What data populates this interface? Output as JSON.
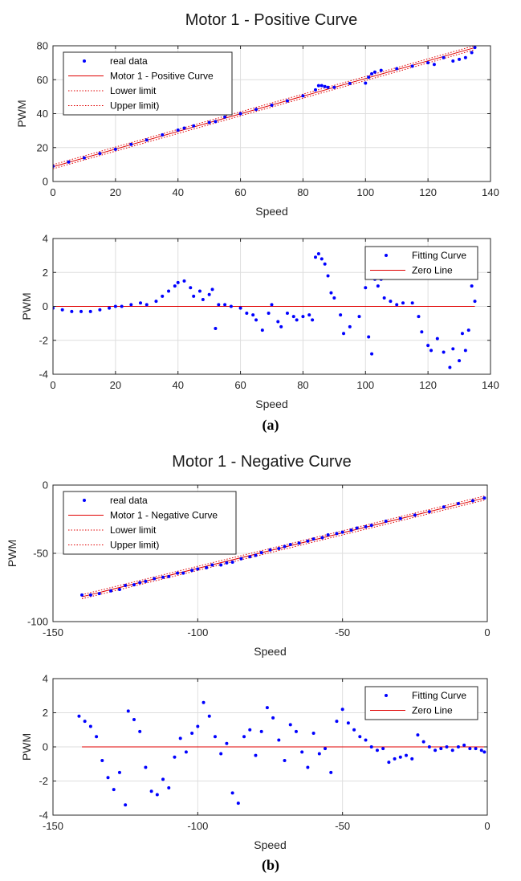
{
  "colors": {
    "data": "#0000ff",
    "curve": "#e00000",
    "grid": "#dedede",
    "axis": "#262626"
  },
  "figure": {
    "caption_a": "(a)",
    "caption_b": "(b)"
  },
  "chart_data": [
    {
      "id": "pos-fit",
      "type": "scatter",
      "title": "Motor 1 - Positive Curve",
      "xlabel": "Speed",
      "ylabel": "PWM",
      "xlim": [
        0,
        140
      ],
      "ylim": [
        0,
        80
      ],
      "xticks": [
        0,
        20,
        40,
        60,
        80,
        100,
        120,
        140
      ],
      "yticks": [
        0,
        20,
        40,
        60,
        80
      ],
      "grid": true,
      "legend_position": "top-left",
      "legend": [
        "real data",
        "Motor 1 - Positive Curve",
        "Lower limit",
        "Upper limit)"
      ],
      "fit": {
        "slope": 0.52,
        "intercept": 8.7
      },
      "lower_offset": -1.2,
      "upper_offset": 1.2,
      "series": [
        {
          "name": "real data",
          "style": "points",
          "x": [
            0,
            5,
            10,
            15,
            20,
            25,
            30,
            35,
            40,
            42,
            45,
            50,
            52,
            55,
            60,
            65,
            70,
            75,
            80,
            84,
            85,
            86,
            87,
            88,
            90,
            95,
            100,
            101,
            102,
            103,
            105,
            110,
            115,
            120,
            122,
            125,
            128,
            130,
            132,
            134,
            135
          ],
          "y": [
            9,
            11.5,
            13.9,
            16.5,
            19,
            21.9,
            24.5,
            27.5,
            30.3,
            31.5,
            32.8,
            34.8,
            35.3,
            38,
            40,
            42.5,
            45,
            47.5,
            50.5,
            54,
            56.5,
            56.5,
            56,
            55.5,
            55.5,
            57.8,
            58,
            61.5,
            63.5,
            64.5,
            65.5,
            66.5,
            68,
            70,
            69,
            73,
            71,
            72,
            73,
            76,
            79
          ]
        },
        {
          "name": "Motor 1 - Positive Curve",
          "style": "fit-line"
        },
        {
          "name": "Lower limit",
          "style": "dotted-offset"
        },
        {
          "name": "Upper limit)",
          "style": "dotted-offset"
        }
      ]
    },
    {
      "id": "pos-res",
      "type": "scatter",
      "title": "",
      "xlabel": "Speed",
      "ylabel": "PWM",
      "xlim": [
        0,
        140
      ],
      "ylim": [
        -4,
        4
      ],
      "xticks": [
        0,
        20,
        40,
        60,
        80,
        100,
        120,
        140
      ],
      "yticks": [
        -4,
        -2,
        0,
        2,
        4
      ],
      "grid": true,
      "legend_position": "top-right",
      "legend": [
        "Fitting Curve",
        "Zero Line"
      ],
      "series": [
        {
          "name": "Fitting Curve",
          "style": "points",
          "x": [
            0,
            3,
            6,
            9,
            12,
            15,
            18,
            20,
            22,
            25,
            28,
            30,
            33,
            35,
            37,
            39,
            40,
            42,
            44,
            45,
            47,
            48,
            50,
            51,
            52,
            53,
            55,
            57,
            60,
            62,
            64,
            65,
            67,
            69,
            70,
            72,
            73,
            75,
            77,
            78,
            80,
            82,
            83,
            84,
            85,
            86,
            87,
            88,
            89,
            90,
            92,
            93,
            95,
            98,
            100,
            101,
            102,
            103,
            104,
            105,
            106,
            108,
            110,
            112,
            115,
            117,
            118,
            120,
            121,
            123,
            125,
            127,
            128,
            130,
            131,
            132,
            133,
            134,
            135
          ],
          "y": [
            -0.1,
            -0.2,
            -0.3,
            -0.3,
            -0.3,
            -0.2,
            -0.1,
            0,
            0,
            0.1,
            0.2,
            0.1,
            0.3,
            0.6,
            0.9,
            1.2,
            1.4,
            1.5,
            1.1,
            0.6,
            0.9,
            0.4,
            0.7,
            1,
            -1.3,
            0.1,
            0.1,
            0,
            -0.1,
            -0.4,
            -0.5,
            -0.8,
            -1.4,
            -0.4,
            0.1,
            -0.9,
            -1.2,
            -0.4,
            -0.6,
            -0.8,
            -0.6,
            -0.5,
            -0.8,
            2.9,
            3.1,
            2.8,
            2.5,
            1.8,
            0.8,
            0.5,
            -0.5,
            -1.6,
            -1.2,
            -0.6,
            1.1,
            -1.8,
            -2.8,
            1.6,
            1.2,
            1.6,
            0.5,
            0.3,
            0.1,
            0.2,
            0.2,
            -0.6,
            -1.5,
            -2.3,
            -2.6,
            -1.9,
            -2.7,
            -3.6,
            -2.5,
            -3.2,
            -1.6,
            -2.6,
            -1.4,
            1.2,
            0.3
          ]
        },
        {
          "name": "Zero Line",
          "style": "zero-line"
        }
      ]
    },
    {
      "id": "neg-fit",
      "type": "scatter",
      "title": "Motor 1 - Negative Curve",
      "xlabel": "Speed",
      "ylabel": "PWM",
      "xlim": [
        -150,
        0
      ],
      "ylim": [
        -100,
        0
      ],
      "xticks": [
        -150,
        -100,
        -50,
        0
      ],
      "yticks": [
        -100,
        -50,
        0
      ],
      "grid": true,
      "legend_position": "top-left",
      "legend": [
        "real data",
        "Motor 1 - Negative Curve",
        "Lower limit",
        "Upper limit)"
      ],
      "fit": {
        "slope": 0.52,
        "intercept": -9
      },
      "lower_offset": -1.5,
      "upper_offset": 1.5,
      "series": [
        {
          "name": "real data",
          "style": "points",
          "x": [
            -140,
            -137,
            -134,
            -130,
            -127,
            -125,
            -122,
            -120,
            -118,
            -115,
            -112,
            -110,
            -107,
            -105,
            -102,
            -100,
            -97,
            -95,
            -92,
            -90,
            -88,
            -85,
            -82,
            -80,
            -78,
            -75,
            -72,
            -70,
            -68,
            -65,
            -62,
            -60,
            -57,
            -55,
            -52,
            -50,
            -47,
            -45,
            -42,
            -40,
            -35,
            -30,
            -25,
            -20,
            -15,
            -10,
            -5,
            -1
          ],
          "y": [
            -80.5,
            -80.5,
            -79.5,
            -77.5,
            -76.5,
            -73.5,
            -73,
            -71.5,
            -70.5,
            -68.5,
            -67.5,
            -67,
            -64.5,
            -64.5,
            -62.5,
            -61.5,
            -60.5,
            -58.5,
            -58.5,
            -57,
            -56.5,
            -54,
            -52.5,
            -51.5,
            -49.5,
            -47.5,
            -46.5,
            -45,
            -43.5,
            -42.5,
            -41,
            -39.5,
            -38.5,
            -36.5,
            -35.5,
            -34.5,
            -33,
            -31.5,
            -30.5,
            -29.5,
            -26.5,
            -24.5,
            -22,
            -19.5,
            -16,
            -13.5,
            -11.5,
            -9.5
          ]
        },
        {
          "name": "Motor 1 - Negative Curve",
          "style": "fit-line"
        },
        {
          "name": "Lower limit",
          "style": "dotted-offset"
        },
        {
          "name": "Upper limit)",
          "style": "dotted-offset"
        }
      ]
    },
    {
      "id": "neg-res",
      "type": "scatter",
      "title": "",
      "xlabel": "Speed",
      "ylabel": "PWM",
      "xlim": [
        -150,
        0
      ],
      "ylim": [
        -4,
        4
      ],
      "xticks": [
        -150,
        -100,
        -50,
        0
      ],
      "yticks": [
        -4,
        -2,
        0,
        2,
        4
      ],
      "grid": true,
      "legend_position": "top-right",
      "legend": [
        "Fitting Curve",
        "Zero Line"
      ],
      "series": [
        {
          "name": "Fitting Curve",
          "style": "points",
          "x": [
            -141,
            -139,
            -137,
            -135,
            -133,
            -131,
            -129,
            -127,
            -125,
            -124,
            -122,
            -120,
            -118,
            -116,
            -114,
            -112,
            -110,
            -108,
            -106,
            -104,
            -102,
            -100,
            -98,
            -96,
            -94,
            -92,
            -90,
            -88,
            -86,
            -84,
            -82,
            -80,
            -78,
            -76,
            -74,
            -72,
            -70,
            -68,
            -66,
            -64,
            -62,
            -60,
            -58,
            -56,
            -54,
            -52,
            -50,
            -48,
            -46,
            -44,
            -42,
            -40,
            -38,
            -36,
            -34,
            -32,
            -30,
            -28,
            -26,
            -24,
            -22,
            -20,
            -18,
            -16,
            -14,
            -12,
            -10,
            -8,
            -6,
            -4,
            -2,
            -1
          ],
          "y": [
            1.8,
            1.5,
            1.2,
            0.6,
            -0.8,
            -1.8,
            -2.5,
            -1.5,
            -3.4,
            2.1,
            1.6,
            0.9,
            -1.2,
            -2.6,
            -2.8,
            -1.9,
            -2.4,
            -0.6,
            0.5,
            -0.3,
            0.8,
            1.2,
            2.6,
            1.8,
            0.6,
            -0.4,
            0.2,
            -2.7,
            -3.3,
            0.6,
            1,
            -0.5,
            0.9,
            2.3,
            1.7,
            0.4,
            -0.8,
            1.3,
            0.9,
            -0.3,
            -1.2,
            0.8,
            -0.4,
            -0.1,
            -1.5,
            1.5,
            2.2,
            1.4,
            1,
            0.6,
            0.4,
            0,
            -0.2,
            -0.1,
            -0.9,
            -0.7,
            -0.6,
            -0.5,
            -0.7,
            0.7,
            0.3,
            0,
            -0.2,
            -0.1,
            0,
            -0.2,
            0,
            0.1,
            -0.1,
            -0.1,
            -0.2,
            -0.3
          ]
        },
        {
          "name": "Zero Line",
          "style": "zero-line"
        }
      ]
    }
  ]
}
